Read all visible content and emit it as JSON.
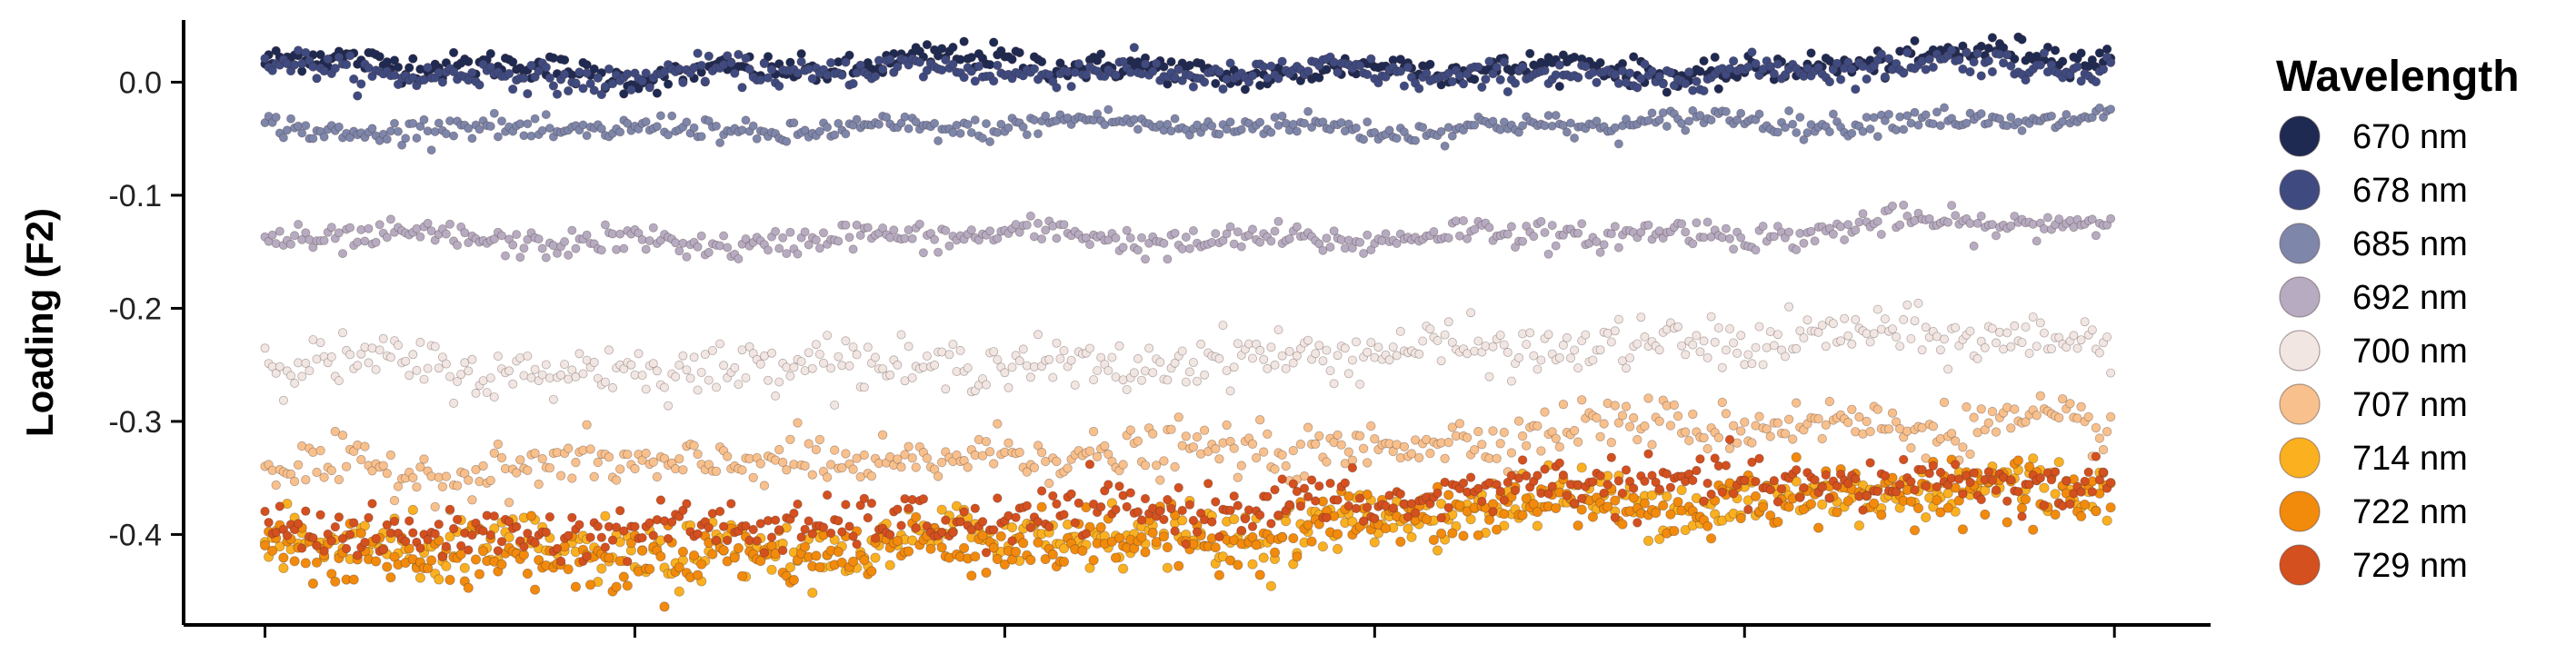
{
  "chart_data": {
    "type": "scatter",
    "title": "",
    "xlabel": "",
    "ylabel": "Loading (F2)",
    "xlim": [
      -22,
      526
    ],
    "ylim": [
      -0.48,
      0.055
    ],
    "x_ticks": [
      0,
      100,
      200,
      300,
      400,
      500
    ],
    "x_tick_labels": [
      "",
      "",
      "",
      "",
      "",
      ""
    ],
    "y_ticks": [
      0.0,
      -0.1,
      -0.2,
      -0.3,
      -0.4
    ],
    "y_tick_labels": [
      "0.0",
      "-0.1",
      "-0.2",
      "-0.3",
      "-0.4"
    ],
    "grid": false,
    "legend": {
      "title": "Wavelength",
      "position": "right"
    },
    "n_points_per_series": 500,
    "series": [
      {
        "name": "670 nm",
        "color": "#1f2a52",
        "profile": [
          [
            0,
            0.018
          ],
          [
            50,
            0.014
          ],
          [
            100,
            0.008
          ],
          [
            150,
            0.012
          ],
          [
            200,
            0.02
          ],
          [
            250,
            0.01
          ],
          [
            300,
            0.01
          ],
          [
            350,
            0.012
          ],
          [
            400,
            0.01
          ],
          [
            450,
            0.022
          ],
          [
            500,
            0.022
          ]
        ]
      },
      {
        "name": "678 nm",
        "color": "#3f4b80",
        "profile": [
          [
            0,
            0.013
          ],
          [
            50,
            0.008
          ],
          [
            100,
            0.004
          ],
          [
            150,
            0.008
          ],
          [
            200,
            0.014
          ],
          [
            250,
            0.006
          ],
          [
            300,
            0.006
          ],
          [
            350,
            0.008
          ],
          [
            400,
            0.006
          ],
          [
            450,
            0.016
          ],
          [
            500,
            0.018
          ]
        ]
      },
      {
        "name": "685 nm",
        "color": "#7e86aa",
        "profile": [
          [
            0,
            -0.038
          ],
          [
            50,
            -0.042
          ],
          [
            100,
            -0.045
          ],
          [
            150,
            -0.04
          ],
          [
            200,
            -0.038
          ],
          [
            250,
            -0.04
          ],
          [
            300,
            -0.038
          ],
          [
            350,
            -0.04
          ],
          [
            400,
            -0.036
          ],
          [
            450,
            -0.032
          ],
          [
            500,
            -0.032
          ]
        ]
      },
      {
        "name": "692 nm",
        "color": "#b6abc0",
        "profile": [
          [
            0,
            -0.136
          ],
          [
            50,
            -0.142
          ],
          [
            100,
            -0.14
          ],
          [
            150,
            -0.14
          ],
          [
            200,
            -0.136
          ],
          [
            250,
            -0.138
          ],
          [
            300,
            -0.138
          ],
          [
            350,
            -0.136
          ],
          [
            400,
            -0.132
          ],
          [
            450,
            -0.125
          ],
          [
            500,
            -0.13
          ]
        ]
      },
      {
        "name": "700 nm",
        "color": "#f2e6e2",
        "profile": [
          [
            0,
            -0.245
          ],
          [
            50,
            -0.252
          ],
          [
            100,
            -0.255
          ],
          [
            150,
            -0.25
          ],
          [
            200,
            -0.248
          ],
          [
            250,
            -0.248
          ],
          [
            300,
            -0.24
          ],
          [
            350,
            -0.232
          ],
          [
            400,
            -0.23
          ],
          [
            450,
            -0.225
          ],
          [
            500,
            -0.228
          ]
        ]
      },
      {
        "name": "707 nm",
        "color": "#f8c08c",
        "profile": [
          [
            0,
            -0.335
          ],
          [
            50,
            -0.345
          ],
          [
            100,
            -0.34
          ],
          [
            150,
            -0.335
          ],
          [
            200,
            -0.33
          ],
          [
            250,
            -0.33
          ],
          [
            300,
            -0.322
          ],
          [
            350,
            -0.305
          ],
          [
            400,
            -0.305
          ],
          [
            450,
            -0.3
          ],
          [
            500,
            -0.305
          ]
        ]
      },
      {
        "name": "714 nm",
        "color": "#fbb020",
        "profile": [
          [
            0,
            -0.41
          ],
          [
            50,
            -0.415
          ],
          [
            100,
            -0.415
          ],
          [
            150,
            -0.415
          ],
          [
            200,
            -0.4
          ],
          [
            250,
            -0.4
          ],
          [
            300,
            -0.39
          ],
          [
            350,
            -0.37
          ],
          [
            400,
            -0.37
          ],
          [
            450,
            -0.36
          ],
          [
            500,
            -0.36
          ]
        ]
      },
      {
        "name": "722 nm",
        "color": "#f28a0c",
        "profile": [
          [
            0,
            -0.415
          ],
          [
            50,
            -0.42
          ],
          [
            100,
            -0.42
          ],
          [
            150,
            -0.42
          ],
          [
            200,
            -0.405
          ],
          [
            250,
            -0.405
          ],
          [
            300,
            -0.39
          ],
          [
            350,
            -0.372
          ],
          [
            400,
            -0.372
          ],
          [
            450,
            -0.362
          ],
          [
            500,
            -0.362
          ]
        ]
      },
      {
        "name": "729 nm",
        "color": "#d4501e",
        "profile": [
          [
            0,
            -0.39
          ],
          [
            50,
            -0.4
          ],
          [
            100,
            -0.4
          ],
          [
            150,
            -0.39
          ],
          [
            200,
            -0.385
          ],
          [
            250,
            -0.38
          ],
          [
            300,
            -0.37
          ],
          [
            350,
            -0.352
          ],
          [
            400,
            -0.36
          ],
          [
            450,
            -0.35
          ],
          [
            500,
            -0.355
          ]
        ]
      }
    ]
  }
}
